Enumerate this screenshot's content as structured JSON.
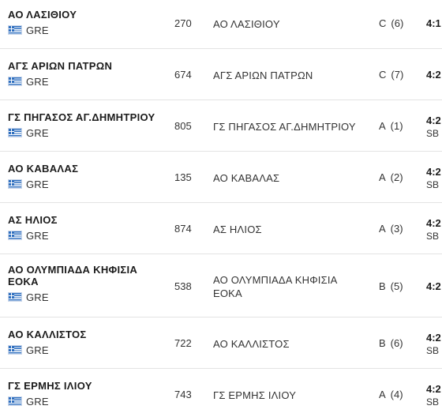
{
  "rows": [
    {
      "team": "ΑΟ ΛΑΣΙΘΙΟΥ",
      "country": "GRE",
      "number": "270",
      "club": "ΑΟ ΛΑΣΙΘΙΟΥ",
      "race_letter": "C",
      "race_pos": "(6)",
      "result": "4:1",
      "note": ""
    },
    {
      "team": "ΑΓΣ ΑΡΙΩΝ ΠΑΤΡΩΝ",
      "country": "GRE",
      "number": "674",
      "club": "ΑΓΣ ΑΡΙΩΝ ΠΑΤΡΩΝ",
      "race_letter": "C",
      "race_pos": "(7)",
      "result": "4:2",
      "note": ""
    },
    {
      "team": "ΓΣ ΠΗΓΑΣΟΣ ΑΓ.ΔΗΜΗΤΡΙΟΥ",
      "country": "GRE",
      "number": "805",
      "club": "ΓΣ ΠΗΓΑΣΟΣ ΑΓ.ΔΗΜΗΤΡΙΟΥ",
      "race_letter": "A",
      "race_pos": "(1)",
      "result": "4:2",
      "note": "SB"
    },
    {
      "team": "ΑΟ ΚΑΒΑΛΑΣ",
      "country": "GRE",
      "number": "135",
      "club": "ΑΟ ΚΑΒΑΛΑΣ",
      "race_letter": "A",
      "race_pos": "(2)",
      "result": "4:2",
      "note": "SB"
    },
    {
      "team": "ΑΣ ΗΛΙΟΣ",
      "country": "GRE",
      "number": "874",
      "club": "ΑΣ ΗΛΙΟΣ",
      "race_letter": "A",
      "race_pos": "(3)",
      "result": "4:2",
      "note": "SB"
    },
    {
      "team": "ΑΟ ΟΛΥΜΠΙΑΔΑ ΚΗΦΙΣΙΑ ΕΟΚΑ",
      "country": "GRE",
      "number": "538",
      "club": "ΑΟ ΟΛΥΜΠΙΑΔΑ ΚΗΦΙΣΙΑ ΕΟΚΑ",
      "race_letter": "B",
      "race_pos": "(5)",
      "result": "4:2",
      "note": ""
    },
    {
      "team": "ΑΟ ΚΑΛΛΙΣΤΟΣ",
      "country": "GRE",
      "number": "722",
      "club": "ΑΟ ΚΑΛΛΙΣΤΟΣ",
      "race_letter": "B",
      "race_pos": "(6)",
      "result": "4:2",
      "note": "SB"
    },
    {
      "team": "ΓΣ ΕΡΜΗΣ ΙΛΙΟΥ",
      "country": "GRE",
      "number": "743",
      "club": "ΓΣ ΕΡΜΗΣ ΙΛΙΟΥ",
      "race_letter": "A",
      "race_pos": "(4)",
      "result": "4:2",
      "note": "SB"
    }
  ],
  "colors": {
    "row_divider": "#e3e3e3",
    "flag_blue": "#2f6fbf",
    "text": "#333333",
    "text_strong": "#1b1b1b"
  }
}
